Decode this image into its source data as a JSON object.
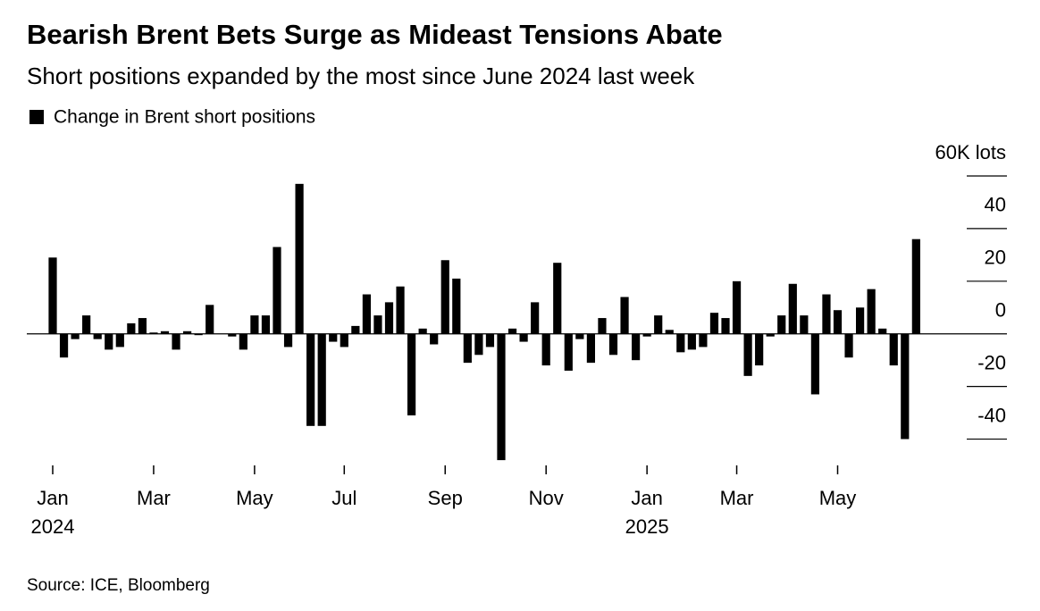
{
  "chart_data": {
    "type": "bar",
    "title": "Bearish Brent Bets Surge as Mideast Tensions Abate",
    "subtitle": "Short positions expanded by the most since June 2024 last week",
    "source": "Source: ICE, Bloomberg",
    "categories": [
      "Jan",
      null,
      null,
      null,
      null,
      null,
      null,
      null,
      null,
      "Mar",
      null,
      null,
      null,
      null,
      null,
      null,
      null,
      null,
      "May",
      null,
      null,
      null,
      null,
      null,
      null,
      null,
      "Jul",
      null,
      null,
      null,
      null,
      null,
      null,
      null,
      null,
      "Sep",
      null,
      null,
      null,
      null,
      null,
      null,
      null,
      null,
      "Nov",
      null,
      null,
      null,
      null,
      null,
      null,
      null,
      null,
      "Jan",
      null,
      null,
      null,
      null,
      null,
      null,
      null,
      "Mar",
      null,
      null,
      null,
      null,
      null,
      null,
      null,
      null,
      "May",
      null,
      null,
      null,
      null,
      null,
      null,
      null
    ],
    "category_years": [
      "2024",
      null,
      null,
      null,
      null,
      null,
      null,
      null,
      null,
      null,
      null,
      null,
      null,
      null,
      null,
      null,
      null,
      null,
      null,
      null,
      null,
      null,
      null,
      null,
      null,
      null,
      null,
      null,
      null,
      null,
      null,
      null,
      null,
      null,
      null,
      null,
      null,
      null,
      null,
      null,
      null,
      null,
      null,
      null,
      null,
      null,
      null,
      null,
      null,
      null,
      null,
      null,
      null,
      "2025",
      null,
      null,
      null,
      null,
      null,
      null,
      null,
      null,
      null,
      null,
      null,
      null,
      null,
      null,
      null,
      null,
      null,
      null,
      null,
      null,
      null,
      null,
      null,
      null
    ],
    "series": [
      {
        "name": "Change in Brent short positions",
        "color": "#000000",
        "values": [
          29,
          -9,
          -2,
          7,
          -2,
          -6,
          -5,
          4,
          6,
          0.5,
          1,
          -6,
          1,
          -0.5,
          11,
          0,
          -1,
          -6,
          7,
          7,
          33,
          -5,
          57,
          -35,
          -35,
          -3,
          -5,
          3,
          15,
          7,
          12,
          18,
          -31,
          2,
          -4,
          28,
          21,
          -11,
          -8,
          -5,
          -48,
          2,
          -3,
          12,
          -12,
          27,
          -14,
          -2,
          -11,
          6,
          -8,
          14,
          -10,
          -1,
          7,
          1.5,
          -7,
          -6,
          -5,
          8,
          6,
          20,
          -16,
          -12,
          -1,
          7,
          19,
          7,
          -23,
          15,
          9,
          -9,
          10,
          17,
          2,
          -12,
          -40,
          36
        ]
      }
    ],
    "ylim": [
      -50,
      60
    ],
    "yticks": [
      -40,
      -20,
      0,
      20,
      40,
      {
        "value": 60,
        "label": "60K lots"
      }
    ]
  }
}
